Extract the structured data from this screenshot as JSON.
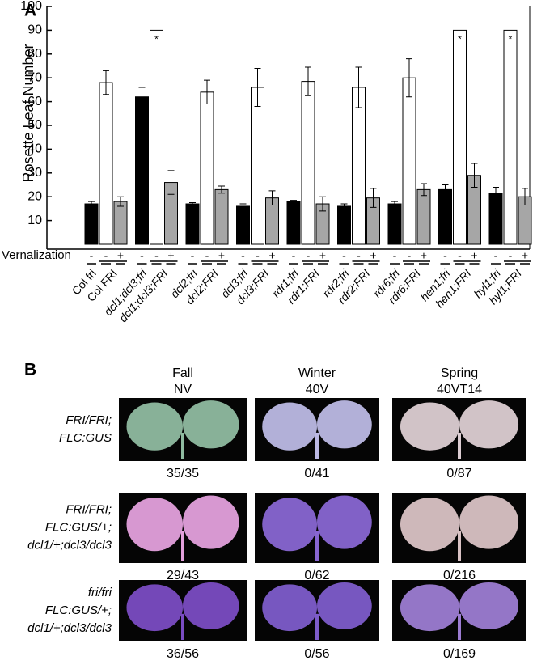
{
  "chart_data": {
    "type": "bar",
    "panel": "A",
    "y_label": "Rosette Leaf Number",
    "ylim": [
      0,
      100
    ],
    "yticks": [
      10,
      20,
      30,
      40,
      50,
      60,
      70,
      80,
      90,
      100
    ],
    "groups": [
      [
        "Col fri",
        "Col FRI"
      ],
      [
        "dcl1;dcl3;fri",
        "dcl1;dcl3;FRI"
      ],
      [
        "dcl2;fri",
        "dcl2;FRI"
      ],
      [
        "dcl3;fri",
        "dcl3;FRI"
      ],
      [
        "rdr1;fri",
        "rdr1;FRI"
      ],
      [
        "rdr2;fri",
        "rdr2;FRI"
      ],
      [
        "rdr6;fri",
        "rdr6;FRI"
      ],
      [
        "hen1;fri",
        "hen1;FRI"
      ],
      [
        "hyl1;fri",
        "hyl1;FRI"
      ]
    ],
    "vernalization": {
      "label": "Vernalization",
      "signs": [
        "-",
        "-",
        "+"
      ]
    },
    "series": [
      {
        "color": "#000000",
        "values": [
          17,
          62,
          17,
          16,
          18,
          16,
          17,
          23,
          21.5
        ],
        "errors": [
          1,
          4,
          0.5,
          1,
          0.5,
          1,
          1,
          2,
          2.5
        ]
      },
      {
        "color": "#ffffff",
        "values": [
          68,
          90,
          64,
          66,
          68.5,
          66,
          70,
          90,
          90
        ],
        "errors": [
          5,
          null,
          5,
          8,
          6,
          8.5,
          8,
          null,
          null
        ],
        "flags": [
          null,
          "*",
          null,
          null,
          null,
          null,
          null,
          "*",
          "*"
        ]
      },
      {
        "color": "#a6a6a6",
        "values": [
          18,
          26,
          23,
          19.5,
          17,
          19.5,
          23,
          29,
          20
        ],
        "errors": [
          2,
          5,
          1.5,
          3,
          3,
          4,
          2.5,
          5,
          3.5
        ]
      }
    ]
  },
  "panel_b": {
    "label": "B",
    "columns": [
      [
        "Fall",
        "NV"
      ],
      [
        "Winter",
        "40V"
      ],
      [
        "Spring",
        "40VT14"
      ]
    ],
    "rows": [
      {
        "genotype": [
          "FRI/FRI;",
          "FLC:GUS"
        ],
        "counts": [
          "35/35",
          "0/41",
          "0/87"
        ]
      },
      {
        "genotype": [
          "FRI/FRI;",
          "FLC:GUS/+;",
          "dcl1/+;dcl3/dcl3"
        ],
        "counts": [
          "29/43",
          "0/62",
          "0/216"
        ]
      },
      {
        "genotype": [
          "fri/fri",
          "FLC:GUS/+;",
          "dcl1/+;dcl3/dcl3"
        ],
        "counts": [
          "36/56",
          "0/56",
          "0/169"
        ]
      }
    ]
  }
}
